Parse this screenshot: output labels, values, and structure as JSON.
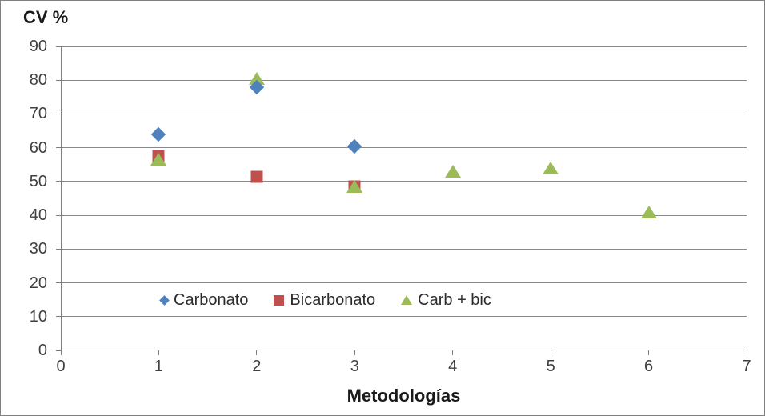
{
  "chart": {
    "y_axis_title": "CV %",
    "x_axis_title": "Metodologías"
  },
  "colors": {
    "axis": "#7f7f7f",
    "gridline": "#898989",
    "tick_label": "#3f3f3f",
    "title_text": "#1a1a1a",
    "background": "#ffffff",
    "border": "#7f7f7f",
    "series_blue": "#4F81BD",
    "series_red": "#C0504D",
    "series_green": "#9BBB59"
  },
  "chart_data": {
    "type": "scatter",
    "title": "",
    "ylabel": "CV %",
    "xlabel": "Metodologías",
    "xlim": [
      0,
      7
    ],
    "ylim": [
      0,
      90
    ],
    "x_ticks": [
      0,
      1,
      2,
      3,
      4,
      5,
      6,
      7
    ],
    "y_ticks": [
      0,
      10,
      20,
      30,
      40,
      50,
      60,
      70,
      80,
      90
    ],
    "grid": "horizontal-only",
    "legend_position": "inside-bottom-left",
    "series": [
      {
        "name": "Carbonato",
        "marker": "diamond",
        "color": "#4F81BD",
        "z": 3,
        "points": [
          [
            1,
            64
          ],
          [
            2,
            78
          ],
          [
            3,
            60.5
          ]
        ]
      },
      {
        "name": "Bicarbonato",
        "marker": "square",
        "color": "#C0504D",
        "z": 1,
        "points": [
          [
            1,
            57.5
          ],
          [
            2,
            51.5
          ],
          [
            3,
            48.5
          ]
        ]
      },
      {
        "name": "Carb + bic",
        "marker": "triangle",
        "color": "#9BBB59",
        "z": 2,
        "points": [
          [
            1,
            56.5
          ],
          [
            2,
            80.5
          ],
          [
            3,
            48.5
          ],
          [
            4,
            53
          ],
          [
            5,
            54
          ],
          [
            6,
            41
          ]
        ]
      }
    ]
  }
}
